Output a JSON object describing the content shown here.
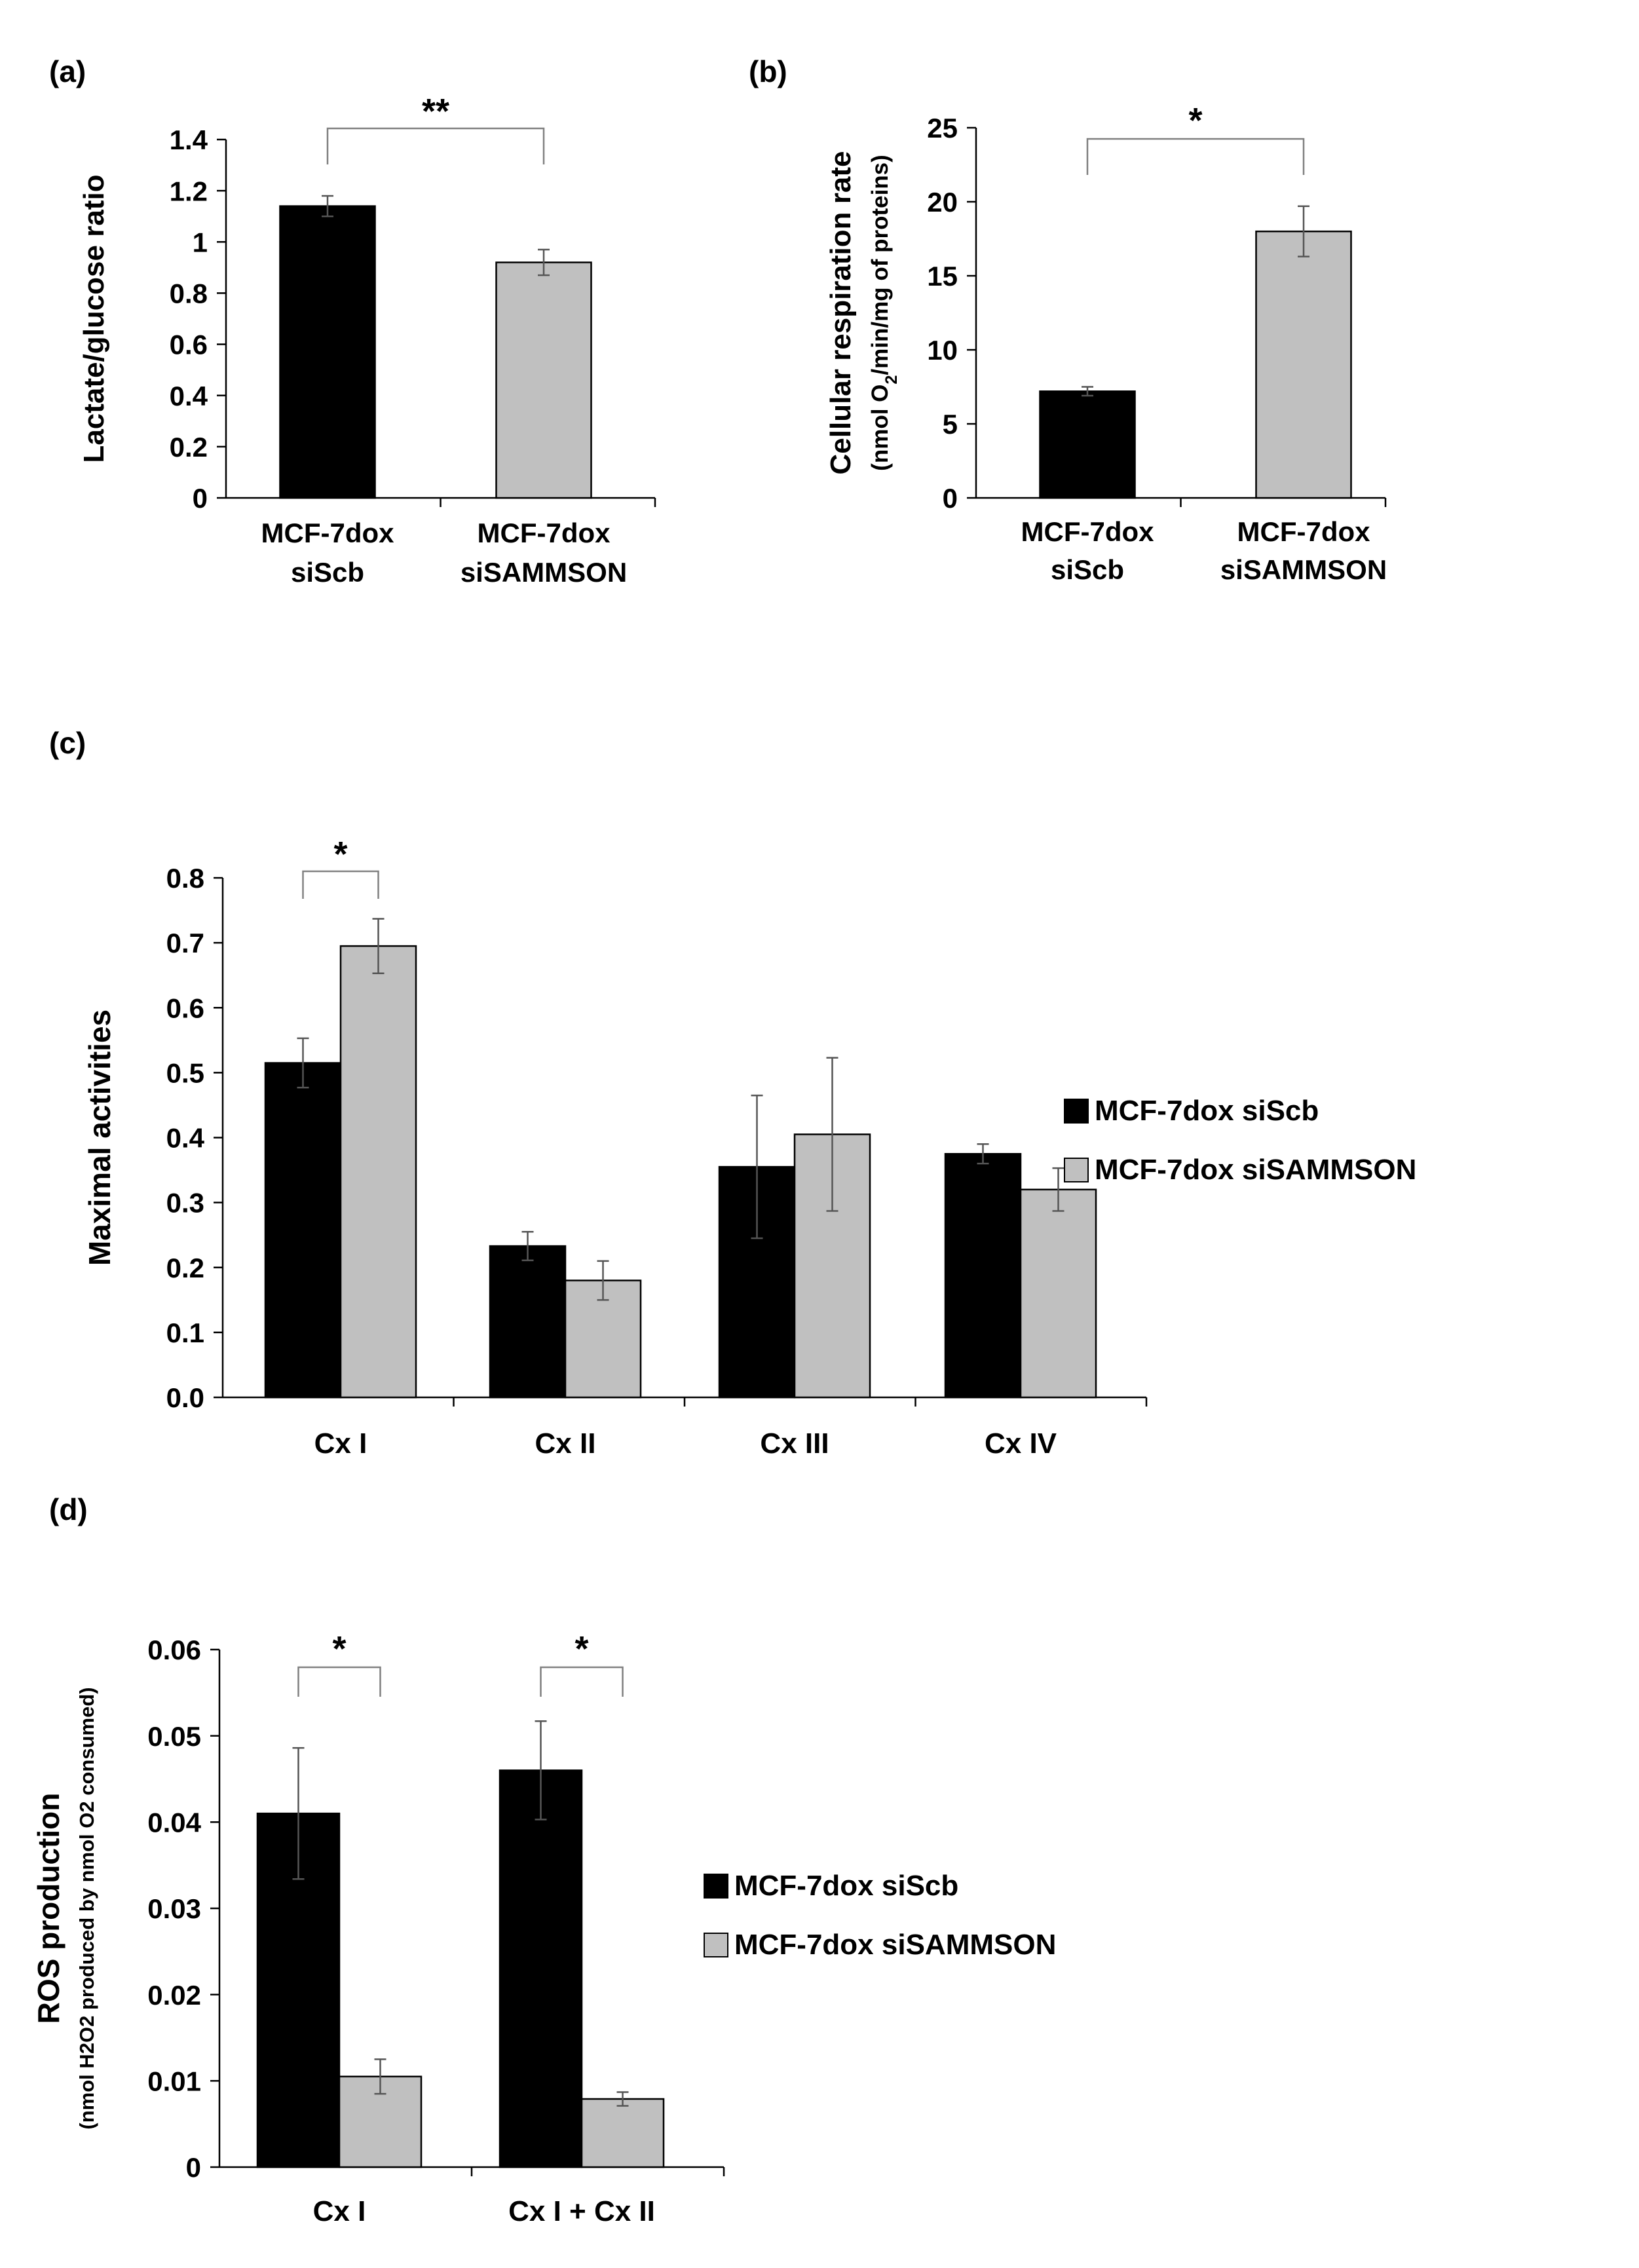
{
  "colors": {
    "bar_primary": "#000000",
    "bar_secondary": "#c0c0c0",
    "bar_stroke": "#000000",
    "axis": "#000000",
    "errorbar": "#555555",
    "bracket": "#808080",
    "background": "#ffffff"
  },
  "chart_data": [
    {
      "panel_label": "(a)",
      "type": "bar",
      "categories": [
        [
          "MCF-7dox",
          "siScb"
        ],
        [
          "MCF-7dox",
          "siSAMMSON"
        ]
      ],
      "values": [
        1.14,
        0.92
      ],
      "errors": [
        0.04,
        0.05
      ],
      "ylabel": [
        "Lactate/glucose ratio"
      ],
      "ylim": [
        0,
        1.4
      ],
      "yticks": [
        "0",
        "0.2",
        "0.4",
        "0.6",
        "0.8",
        "1",
        "1.2",
        "1.4"
      ],
      "significance": [
        {
          "between": [
            0,
            1
          ],
          "label": "**"
        }
      ]
    },
    {
      "panel_label": "(b)",
      "type": "bar",
      "categories": [
        [
          "MCF-7dox",
          "siScb"
        ],
        [
          "MCF-7dox",
          "siSAMMSON"
        ]
      ],
      "values": [
        7.2,
        18.0
      ],
      "errors": [
        0.3,
        1.7
      ],
      "ylabel": [
        "Cellular respiration rate",
        "(nmol O2/min/mg of proteins)"
      ],
      "ylim": [
        0,
        25
      ],
      "yticks": [
        "0",
        "5",
        "10",
        "15",
        "20",
        "25"
      ],
      "significance": [
        {
          "between": [
            0,
            1
          ],
          "label": "*"
        }
      ]
    },
    {
      "panel_label": "(c)",
      "type": "bar",
      "categories": [
        "Cx I",
        "Cx II",
        "Cx III",
        "Cx IV"
      ],
      "series": [
        {
          "name": "MCF-7dox siScb",
          "values": [
            0.515,
            0.233,
            0.355,
            0.375
          ],
          "errors": [
            0.038,
            0.022,
            0.11,
            0.015
          ]
        },
        {
          "name": "MCF-7dox siSAMMSON",
          "values": [
            0.695,
            0.18,
            0.405,
            0.32
          ],
          "errors": [
            0.042,
            0.03,
            0.118,
            0.033
          ]
        }
      ],
      "ylabel": [
        "Maximal activities"
      ],
      "ylim": [
        0,
        0.8
      ],
      "yticks": [
        "0.0",
        "0.1",
        "0.2",
        "0.3",
        "0.4",
        "0.5",
        "0.6",
        "0.7",
        "0.8"
      ],
      "legend": "right",
      "significance": [
        {
          "category": 0,
          "label": "*"
        }
      ]
    },
    {
      "panel_label": "(d)",
      "type": "bar",
      "categories": [
        "Cx I",
        "Cx I + Cx II"
      ],
      "series": [
        {
          "name": "MCF-7dox siScb",
          "values": [
            0.041,
            0.046
          ],
          "errors": [
            0.0076,
            0.0057
          ]
        },
        {
          "name": "MCF-7dox siSAMMSON",
          "values": [
            0.0105,
            0.0079
          ],
          "errors": [
            0.002,
            0.0008
          ]
        }
      ],
      "ylabel": [
        "ROS production",
        "(nmol H2O2 produced by nmol O2 consumed)"
      ],
      "ylim": [
        0,
        0.06
      ],
      "yticks": [
        "0",
        "0.01",
        "0.02",
        "0.03",
        "0.04",
        "0.05",
        "0.06"
      ],
      "legend": "right",
      "significance": [
        {
          "category": 0,
          "label": "*"
        },
        {
          "category": 1,
          "label": "*"
        }
      ]
    }
  ]
}
